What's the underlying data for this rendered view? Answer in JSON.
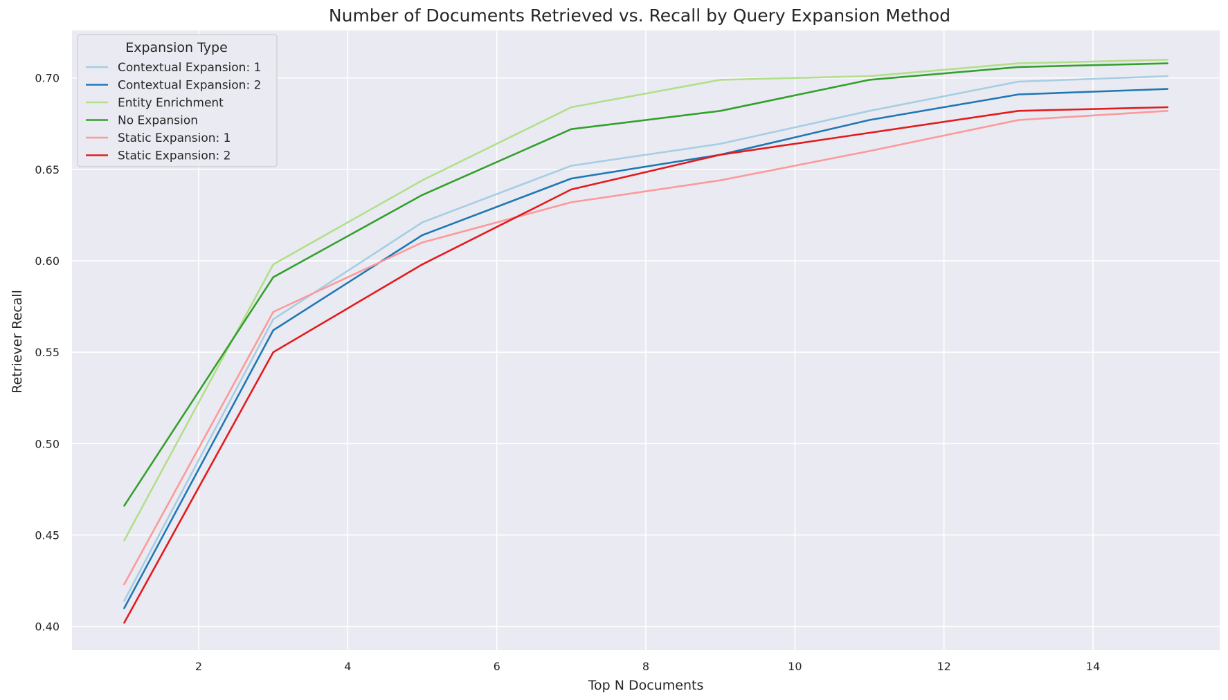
{
  "chart_data": {
    "type": "line",
    "title": "Number of Documents Retrieved vs. Recall by Query Expansion Method",
    "xlabel": "Top N Documents",
    "ylabel": "Retriever Recall",
    "xlim": [
      0.3,
      15.7
    ],
    "ylim": [
      0.387,
      0.726
    ],
    "xticks": [
      2,
      4,
      6,
      8,
      10,
      12,
      14
    ],
    "xtick_labels": [
      "2",
      "4",
      "6",
      "8",
      "10",
      "12",
      "14"
    ],
    "yticks": [
      0.4,
      0.45,
      0.5,
      0.55,
      0.6,
      0.65,
      0.7
    ],
    "ytick_labels": [
      "0.40",
      "0.45",
      "0.50",
      "0.55",
      "0.60",
      "0.65",
      "0.70"
    ],
    "grid": true,
    "legend": {
      "title": "Expansion Type",
      "position": "top-left"
    },
    "x": [
      1,
      3,
      5,
      7,
      9,
      11,
      13,
      15
    ],
    "series": [
      {
        "name": "Contextual Expansion: 1",
        "color": "#a6cee3",
        "values": [
          0.414,
          0.568,
          0.621,
          0.652,
          0.664,
          0.682,
          0.698,
          0.701
        ]
      },
      {
        "name": "Contextual Expansion: 2",
        "color": "#1f78b4",
        "values": [
          0.41,
          0.562,
          0.614,
          0.645,
          0.658,
          0.677,
          0.691,
          0.694
        ]
      },
      {
        "name": "Entity Enrichment",
        "color": "#b2df8a",
        "values": [
          0.447,
          0.598,
          0.644,
          0.684,
          0.699,
          0.701,
          0.708,
          0.71
        ]
      },
      {
        "name": "No Expansion",
        "color": "#33a02c",
        "values": [
          0.466,
          0.591,
          0.636,
          0.672,
          0.682,
          0.699,
          0.706,
          0.708
        ]
      },
      {
        "name": "Static Expansion: 1",
        "color": "#fb9a99",
        "values": [
          0.423,
          0.572,
          0.61,
          0.632,
          0.644,
          0.66,
          0.677,
          0.682
        ]
      },
      {
        "name": "Static Expansion: 2",
        "color": "#e31a1c",
        "values": [
          0.402,
          0.55,
          0.598,
          0.639,
          0.658,
          0.67,
          0.682,
          0.684
        ]
      }
    ],
    "background_color": "#eaeaf2"
  }
}
